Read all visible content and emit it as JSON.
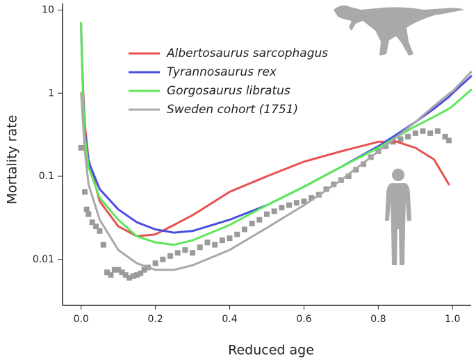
{
  "chart_data": {
    "type": "line",
    "xlabel": "Reduced age",
    "ylabel": "Mortality rate",
    "log_y": true,
    "xlim": [
      -0.05,
      1.05
    ],
    "ylim": [
      0.0028,
      12
    ],
    "xticks": [
      {
        "value": 0,
        "label": "0.0"
      },
      0.2,
      0.4,
      0.6,
      0.8,
      {
        "value": 1,
        "label": "1.0"
      }
    ],
    "yticks": [
      0.01,
      0.1,
      1,
      10
    ],
    "legend": "top-left",
    "x": [
      0,
      0.005,
      0.01,
      0.02,
      0.05,
      0.1,
      0.15,
      0.2,
      0.25,
      0.3,
      0.4,
      0.5,
      0.6,
      0.7,
      0.8,
      0.85,
      0.9,
      0.95,
      0.99,
      1.0,
      1.05
    ],
    "series": [
      {
        "name": "Albertosaurus sarcophagus",
        "color": "#e8514f",
        "values": [
          6.9,
          1.2,
          0.42,
          0.16,
          0.05,
          0.025,
          0.019,
          0.02,
          0.026,
          0.034,
          0.065,
          0.1,
          0.15,
          0.2,
          0.26,
          0.26,
          0.22,
          0.16,
          0.08,
          null,
          null
        ]
      },
      {
        "name": "Tyrannosaurus rex",
        "color": "#4a4ee0",
        "values": [
          6,
          1.0,
          0.35,
          0.15,
          0.07,
          0.04,
          0.028,
          0.023,
          0.021,
          0.022,
          0.03,
          0.045,
          0.075,
          0.13,
          0.23,
          0.32,
          0.45,
          0.65,
          0.9,
          1.0,
          1.6
        ]
      },
      {
        "name": "Gorgosaurus libratus",
        "color": "#5de85a",
        "values": [
          7,
          0.9,
          0.3,
          0.13,
          0.055,
          0.03,
          0.019,
          0.016,
          0.015,
          0.017,
          0.026,
          0.045,
          0.075,
          0.13,
          0.22,
          0.3,
          0.4,
          0.52,
          0.65,
          0.7,
          1.1
        ]
      },
      {
        "name": "Sweden cohort (1751)",
        "color": "#a8a8a8",
        "values": [
          1.0,
          0.45,
          0.2,
          0.08,
          0.03,
          0.013,
          0.009,
          0.0075,
          0.0075,
          0.0085,
          0.013,
          0.024,
          0.045,
          0.09,
          0.2,
          0.3,
          0.45,
          0.7,
          0.98,
          1.05,
          1.8
        ]
      }
    ],
    "points": {
      "color": "#9a9a9a",
      "x": [
        0,
        0.01,
        0.015,
        0.02,
        0.03,
        0.04,
        0.05,
        0.06,
        0.07,
        0.08,
        0.09,
        0.1,
        0.11,
        0.12,
        0.13,
        0.14,
        0.15,
        0.16,
        0.17,
        0.18,
        0.2,
        0.22,
        0.24,
        0.26,
        0.28,
        0.3,
        0.32,
        0.34,
        0.36,
        0.38,
        0.4,
        0.42,
        0.44,
        0.46,
        0.48,
        0.5,
        0.52,
        0.54,
        0.56,
        0.58,
        0.6,
        0.62,
        0.64,
        0.66,
        0.68,
        0.7,
        0.72,
        0.74,
        0.76,
        0.78,
        0.8,
        0.82,
        0.84,
        0.86,
        0.88,
        0.9,
        0.92,
        0.94,
        0.96,
        0.98,
        0.99
      ],
      "values": [
        0.22,
        0.065,
        0.04,
        0.035,
        0.028,
        0.025,
        0.022,
        0.015,
        0.007,
        0.0065,
        0.0075,
        0.0075,
        0.007,
        0.0065,
        0.006,
        0.0063,
        0.0065,
        0.0068,
        0.0075,
        0.008,
        0.009,
        0.01,
        0.011,
        0.012,
        0.013,
        0.012,
        0.014,
        0.016,
        0.015,
        0.017,
        0.018,
        0.02,
        0.023,
        0.027,
        0.03,
        0.035,
        0.038,
        0.042,
        0.045,
        0.048,
        0.05,
        0.055,
        0.06,
        0.07,
        0.08,
        0.09,
        0.1,
        0.12,
        0.14,
        0.17,
        0.2,
        0.23,
        0.26,
        0.28,
        0.3,
        0.33,
        0.35,
        0.33,
        0.35,
        0.3,
        0.27
      ]
    }
  }
}
